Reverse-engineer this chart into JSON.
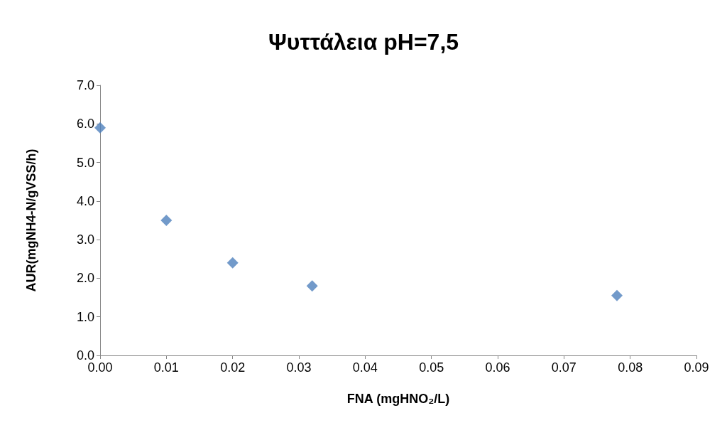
{
  "chart_data": {
    "type": "scatter",
    "title": "Ψυττάλεια pH=7,5",
    "xlabel": "FNA (mgHNO₂/L)",
    "ylabel": "AUR(mgNH4-N/gVSS/h)",
    "x": [
      0,
      0.01,
      0.02,
      0.032,
      0.078
    ],
    "values": [
      5.9,
      3.5,
      2.4,
      1.8,
      1.55
    ],
    "color": "#4f81bd",
    "marker": "diamond",
    "grid": false,
    "xlim": [
      0,
      0.09
    ],
    "xticks": [
      {
        "value": 0,
        "label": "0.00"
      },
      {
        "value": 0.01,
        "label": "0.01"
      },
      {
        "value": 0.02,
        "label": "0.02"
      },
      {
        "value": 0.03,
        "label": "0.03"
      },
      {
        "value": 0.04,
        "label": "0.04"
      },
      {
        "value": 0.05,
        "label": "0.05"
      },
      {
        "value": 0.06,
        "label": "0.06"
      },
      {
        "value": 0.07,
        "label": "0.07"
      },
      {
        "value": 0.08,
        "label": "0.08"
      },
      {
        "value": 0.09,
        "label": "0.09"
      }
    ],
    "ylim": [
      0,
      7
    ],
    "yticks": [
      {
        "value": 0,
        "label": "0.0"
      },
      {
        "value": 1,
        "label": "1.0"
      },
      {
        "value": 2,
        "label": "2.0"
      },
      {
        "value": 3,
        "label": "3.0"
      },
      {
        "value": 4,
        "label": "4.0"
      },
      {
        "value": 5,
        "label": "5.0"
      },
      {
        "value": 6,
        "label": "6.0"
      },
      {
        "value": 7,
        "label": "7.0"
      }
    ]
  }
}
